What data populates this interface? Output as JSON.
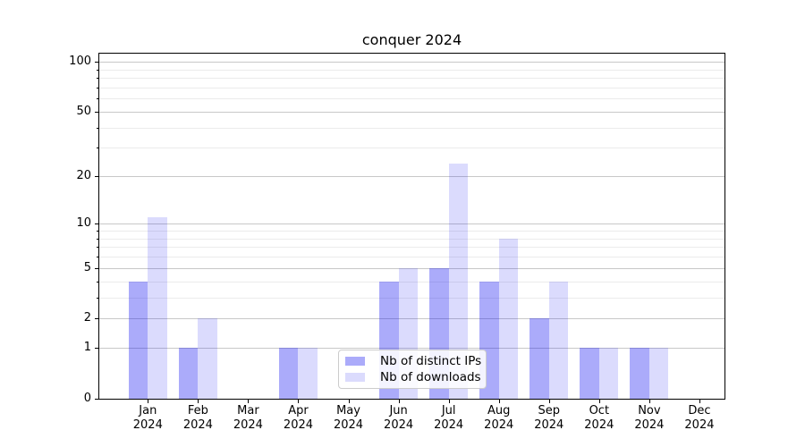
{
  "chart_data": {
    "type": "bar",
    "title": "conquer 2024",
    "categories": [
      "Jan 2024",
      "Feb 2024",
      "Mar 2024",
      "Apr 2024",
      "May 2024",
      "Jun 2024",
      "Jul 2024",
      "Aug 2024",
      "Sep 2024",
      "Oct 2024",
      "Nov 2024",
      "Dec 2024"
    ],
    "series": [
      {
        "name": "Nb of distinct IPs",
        "color": "#0D0DF259",
        "values": [
          4,
          1,
          0,
          1,
          0,
          4,
          5,
          4,
          2,
          1,
          1,
          0
        ]
      },
      {
        "name": "Nb of downloads",
        "color": "#0D0DF226",
        "values": [
          11,
          2,
          0,
          1,
          0,
          5,
          24,
          8,
          4,
          1,
          1,
          0
        ]
      }
    ],
    "xlabel": "",
    "ylabel": "",
    "yscale": "log1p",
    "yticks": [
      0,
      1,
      2,
      5,
      10,
      20,
      50,
      100
    ],
    "yticks_minor": [
      3,
      4,
      6,
      7,
      8,
      9,
      30,
      40,
      60,
      70,
      80,
      90
    ],
    "ylim": [
      0,
      112
    ],
    "grid": "horizontal major+minor",
    "legend_position": "inside lower-center"
  },
  "colors": {
    "bar_distinct_ips": "#0D0DF259",
    "bar_downloads": "#0D0DF226",
    "grid_major": "#c8c8c8",
    "grid_minor": "#ebebeb",
    "axis": "#000000",
    "legend_border": "#cccccc",
    "text": "#000000"
  }
}
